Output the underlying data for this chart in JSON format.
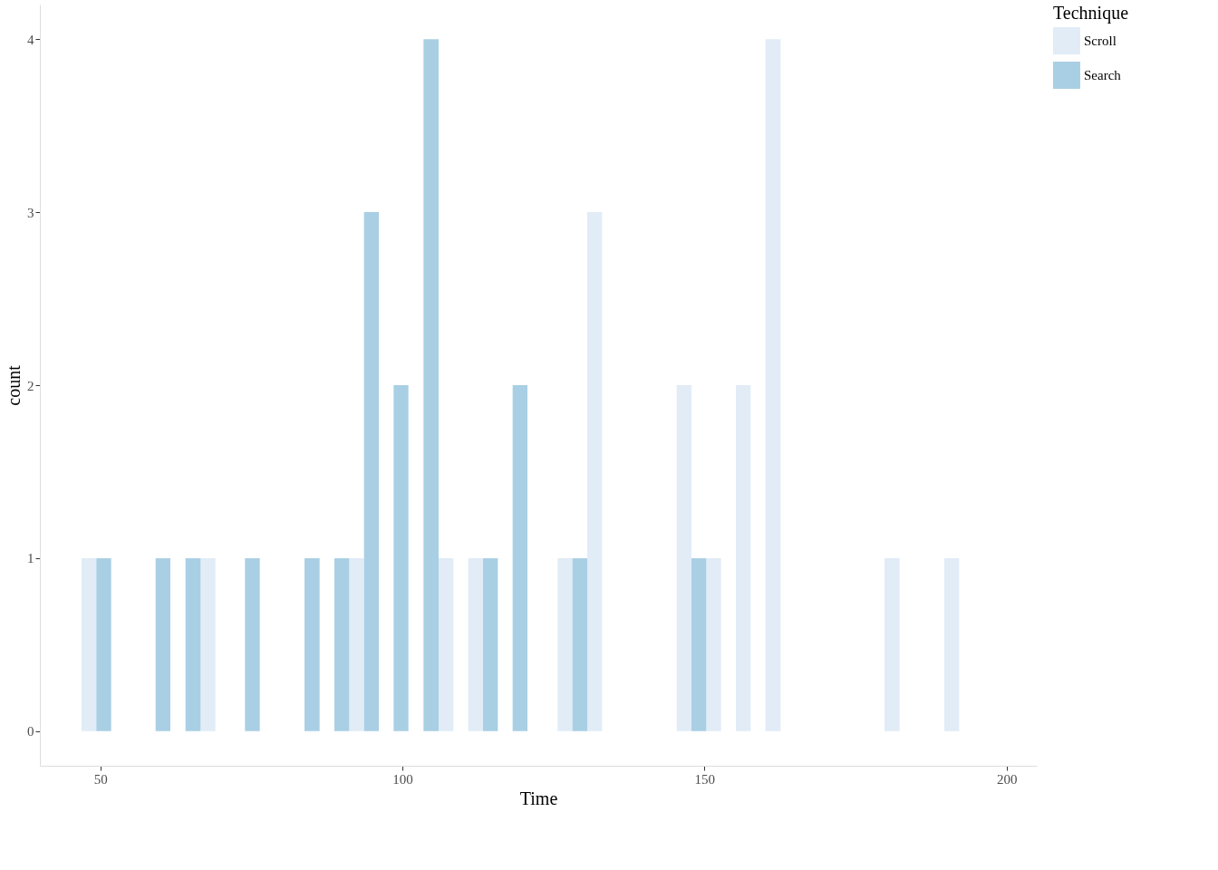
{
  "chart_data": {
    "type": "histogram",
    "xlabel": "Time",
    "ylabel": "count",
    "legend_title": "Technique",
    "legend": "right",
    "grid": false,
    "bins": [
      46.9,
      51.8,
      56.7,
      61.6,
      66.6,
      71.5,
      76.4,
      81.3,
      86.3,
      91.2,
      96.1,
      101.0,
      106.0,
      110.9,
      115.8,
      120.7,
      125.7,
      130.6,
      135.5,
      145.4,
      150.3,
      155.2,
      160.1,
      165.1,
      179.8,
      184.8,
      189.7,
      194.6
    ],
    "series": [
      {
        "name": "Scroll",
        "color": "#e1ecf7",
        "values": [
          1,
          0,
          0,
          0,
          1,
          0,
          0,
          0,
          0,
          1,
          0,
          0,
          1,
          1,
          0,
          0,
          1,
          3,
          0,
          2,
          1,
          2,
          4,
          0,
          1,
          0,
          1
        ]
      },
      {
        "name": "Search",
        "color": "#a9cfe4",
        "values": [
          1,
          0,
          1,
          1,
          0,
          1,
          0,
          1,
          1,
          3,
          2,
          4,
          0,
          1,
          2,
          0,
          1,
          0,
          0,
          1,
          0,
          0,
          0,
          0,
          0,
          0,
          0
        ]
      }
    ],
    "xlim": [
      40,
      205
    ],
    "ylim": [
      -0.2,
      4.2
    ],
    "xticks": [
      50,
      100,
      150,
      200
    ],
    "yticks": [
      0,
      1,
      2,
      3,
      4
    ]
  }
}
